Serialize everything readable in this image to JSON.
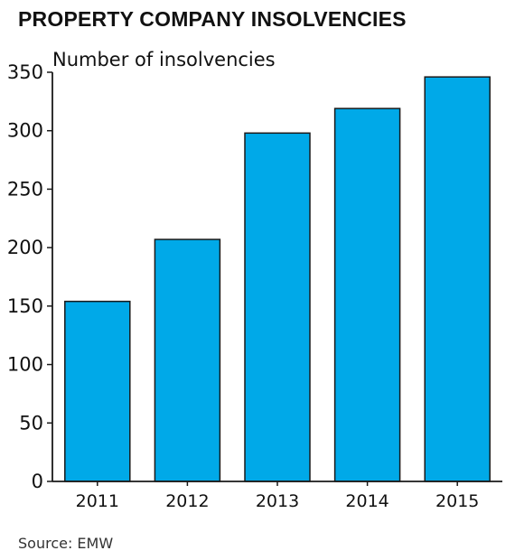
{
  "chart_data": {
    "type": "bar",
    "title": "PROPERTY COMPANY INSOLVENCIES",
    "ylabel": "Number of insolvencies",
    "xlabel": "",
    "categories": [
      "2011",
      "2012",
      "2013",
      "2014",
      "2015"
    ],
    "values": [
      154,
      207,
      298,
      319,
      346
    ],
    "ylim": [
      0,
      350
    ],
    "yticks": [
      0,
      50,
      100,
      150,
      200,
      250,
      300,
      350
    ],
    "grid": false,
    "bar_color": "#00a9e8",
    "bar_edge_color": "#1a1a1a",
    "source": "Source: EMW"
  }
}
